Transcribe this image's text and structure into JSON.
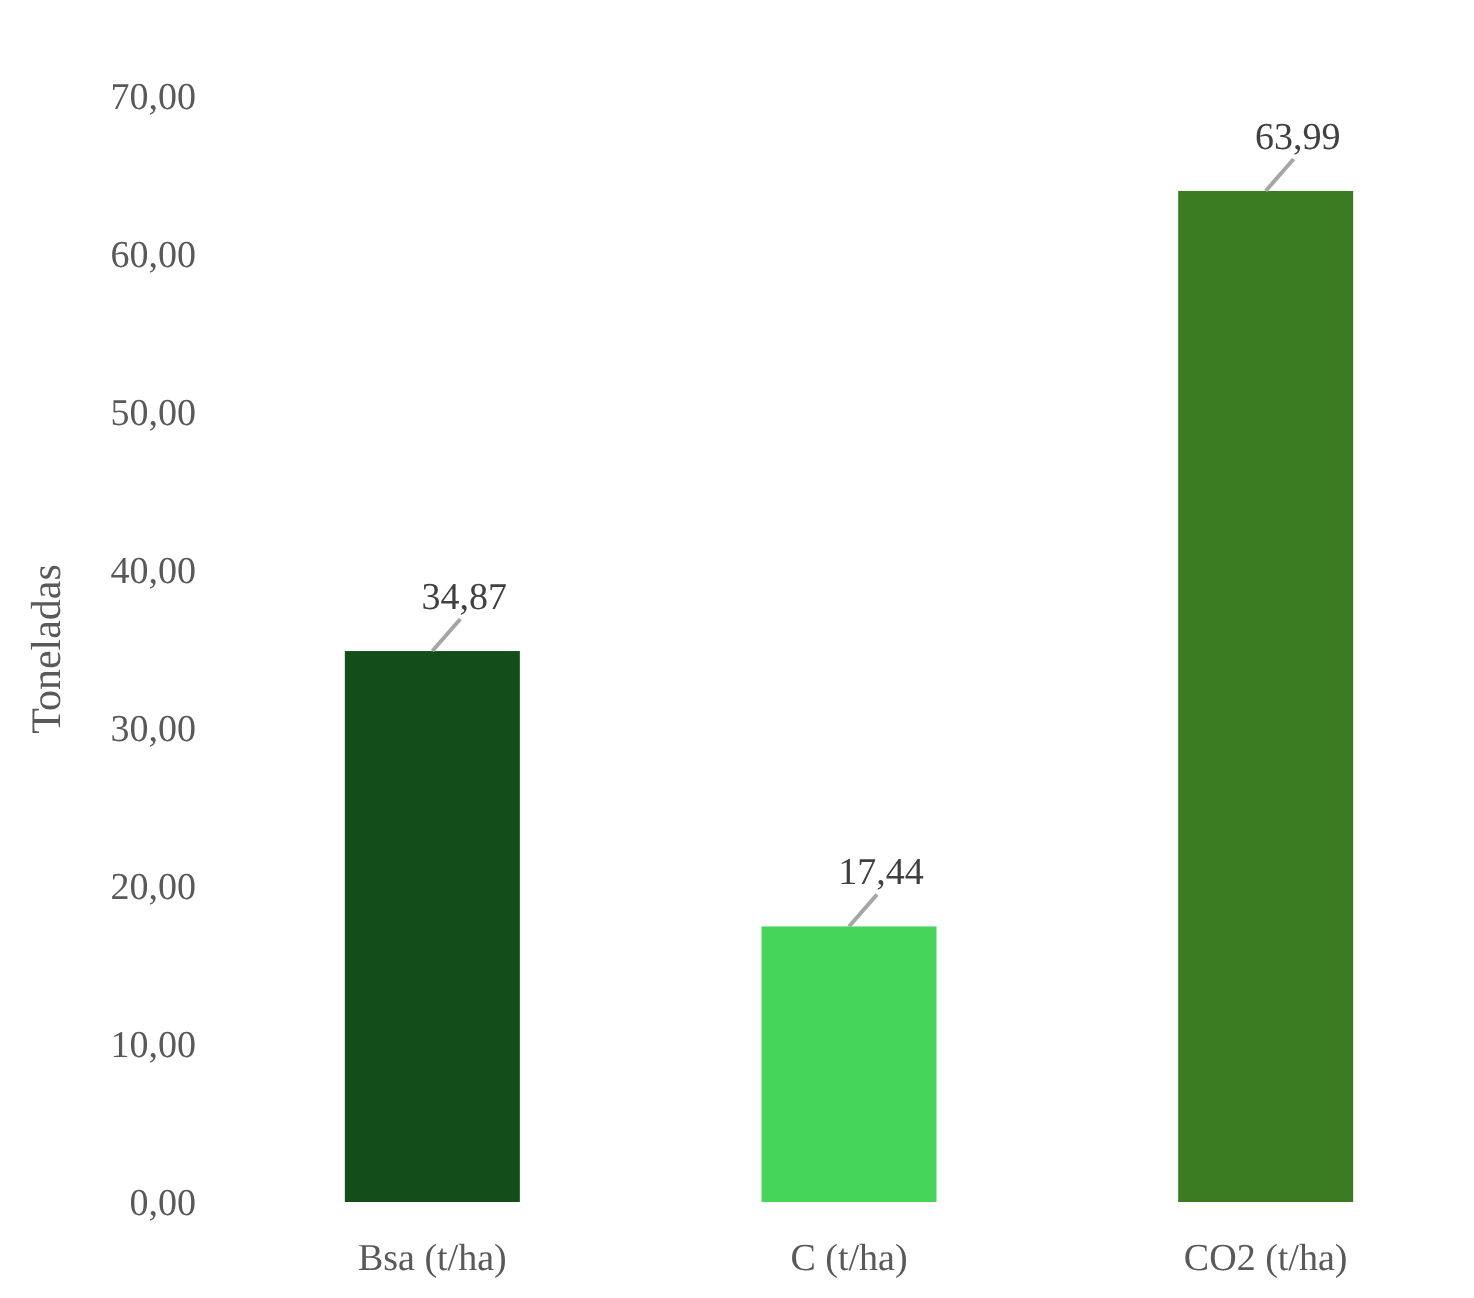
{
  "chart_data": {
    "type": "bar",
    "ylabel": "Toneladas",
    "categories": [
      "Bsa (t/ha)",
      "C (t/ha)",
      "CO2 (t/ha)"
    ],
    "values": [
      34.87,
      17.44,
      63.99
    ],
    "colors": [
      "#124d1a",
      "#45d55a",
      "#3b7c23"
    ],
    "value_labels": [
      "34,87",
      "17,44",
      "63,99"
    ],
    "ylim": [
      0,
      70
    ],
    "yticks": [
      {
        "value": 0,
        "label": "0,00"
      },
      {
        "value": 10,
        "label": "10,00"
      },
      {
        "value": 20,
        "label": "20,00"
      },
      {
        "value": 30,
        "label": "30,00"
      },
      {
        "value": 40,
        "label": "40,00"
      },
      {
        "value": 50,
        "label": "50,00"
      },
      {
        "value": 60,
        "label": "60,00"
      },
      {
        "value": 70,
        "label": "70,00"
      }
    ]
  }
}
